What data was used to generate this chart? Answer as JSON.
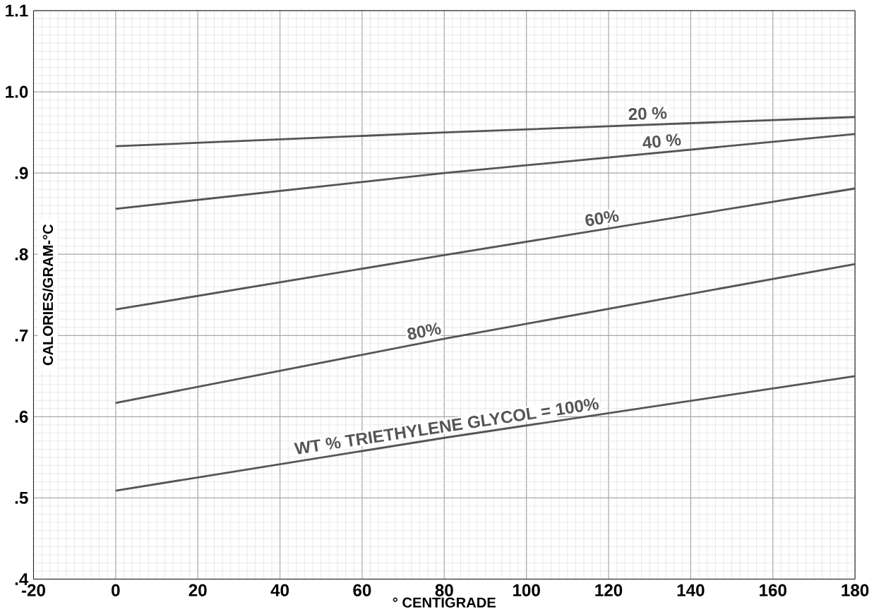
{
  "chart_data": {
    "type": "line",
    "xlabel": "° CENTIGRADE",
    "ylabel": "CALORIES/GRAM-°C",
    "x": [
      0,
      80,
      180
    ],
    "series": [
      {
        "name": "20 %",
        "color": "#555555",
        "values": [
          0.933,
          0.95,
          0.969
        ]
      },
      {
        "name": "40 %",
        "color": "#555555",
        "values": [
          0.856,
          0.9,
          0.948
        ]
      },
      {
        "name": "60%",
        "color": "#555555",
        "values": [
          0.732,
          0.799,
          0.881
        ]
      },
      {
        "name": "80%",
        "color": "#555555",
        "values": [
          0.617,
          0.696,
          0.788
        ]
      },
      {
        "name": "WT % TRIETHYLENE GLYCOL = 100%",
        "color": "#555555",
        "values": [
          0.509,
          0.574,
          0.65
        ]
      }
    ],
    "xlim": [
      -20,
      180
    ],
    "ylim": [
      0.4,
      1.1
    ],
    "xticks": [
      -20,
      0,
      20,
      40,
      60,
      80,
      100,
      120,
      140,
      160,
      180
    ],
    "yticks": [
      {
        "value": 0.4,
        "label": ".4"
      },
      {
        "value": 0.5,
        "label": ".5"
      },
      {
        "value": 0.6,
        "label": ".6"
      },
      {
        "value": 0.7,
        "label": ".7"
      },
      {
        "value": 0.8,
        "label": ".8"
      },
      {
        "value": 0.9,
        "label": ".9"
      },
      {
        "value": 1.0,
        "label": "1.0"
      },
      {
        "value": 1.1,
        "label": "1.1"
      }
    ],
    "grid": true,
    "marker": "none",
    "line_style": "solid"
  }
}
